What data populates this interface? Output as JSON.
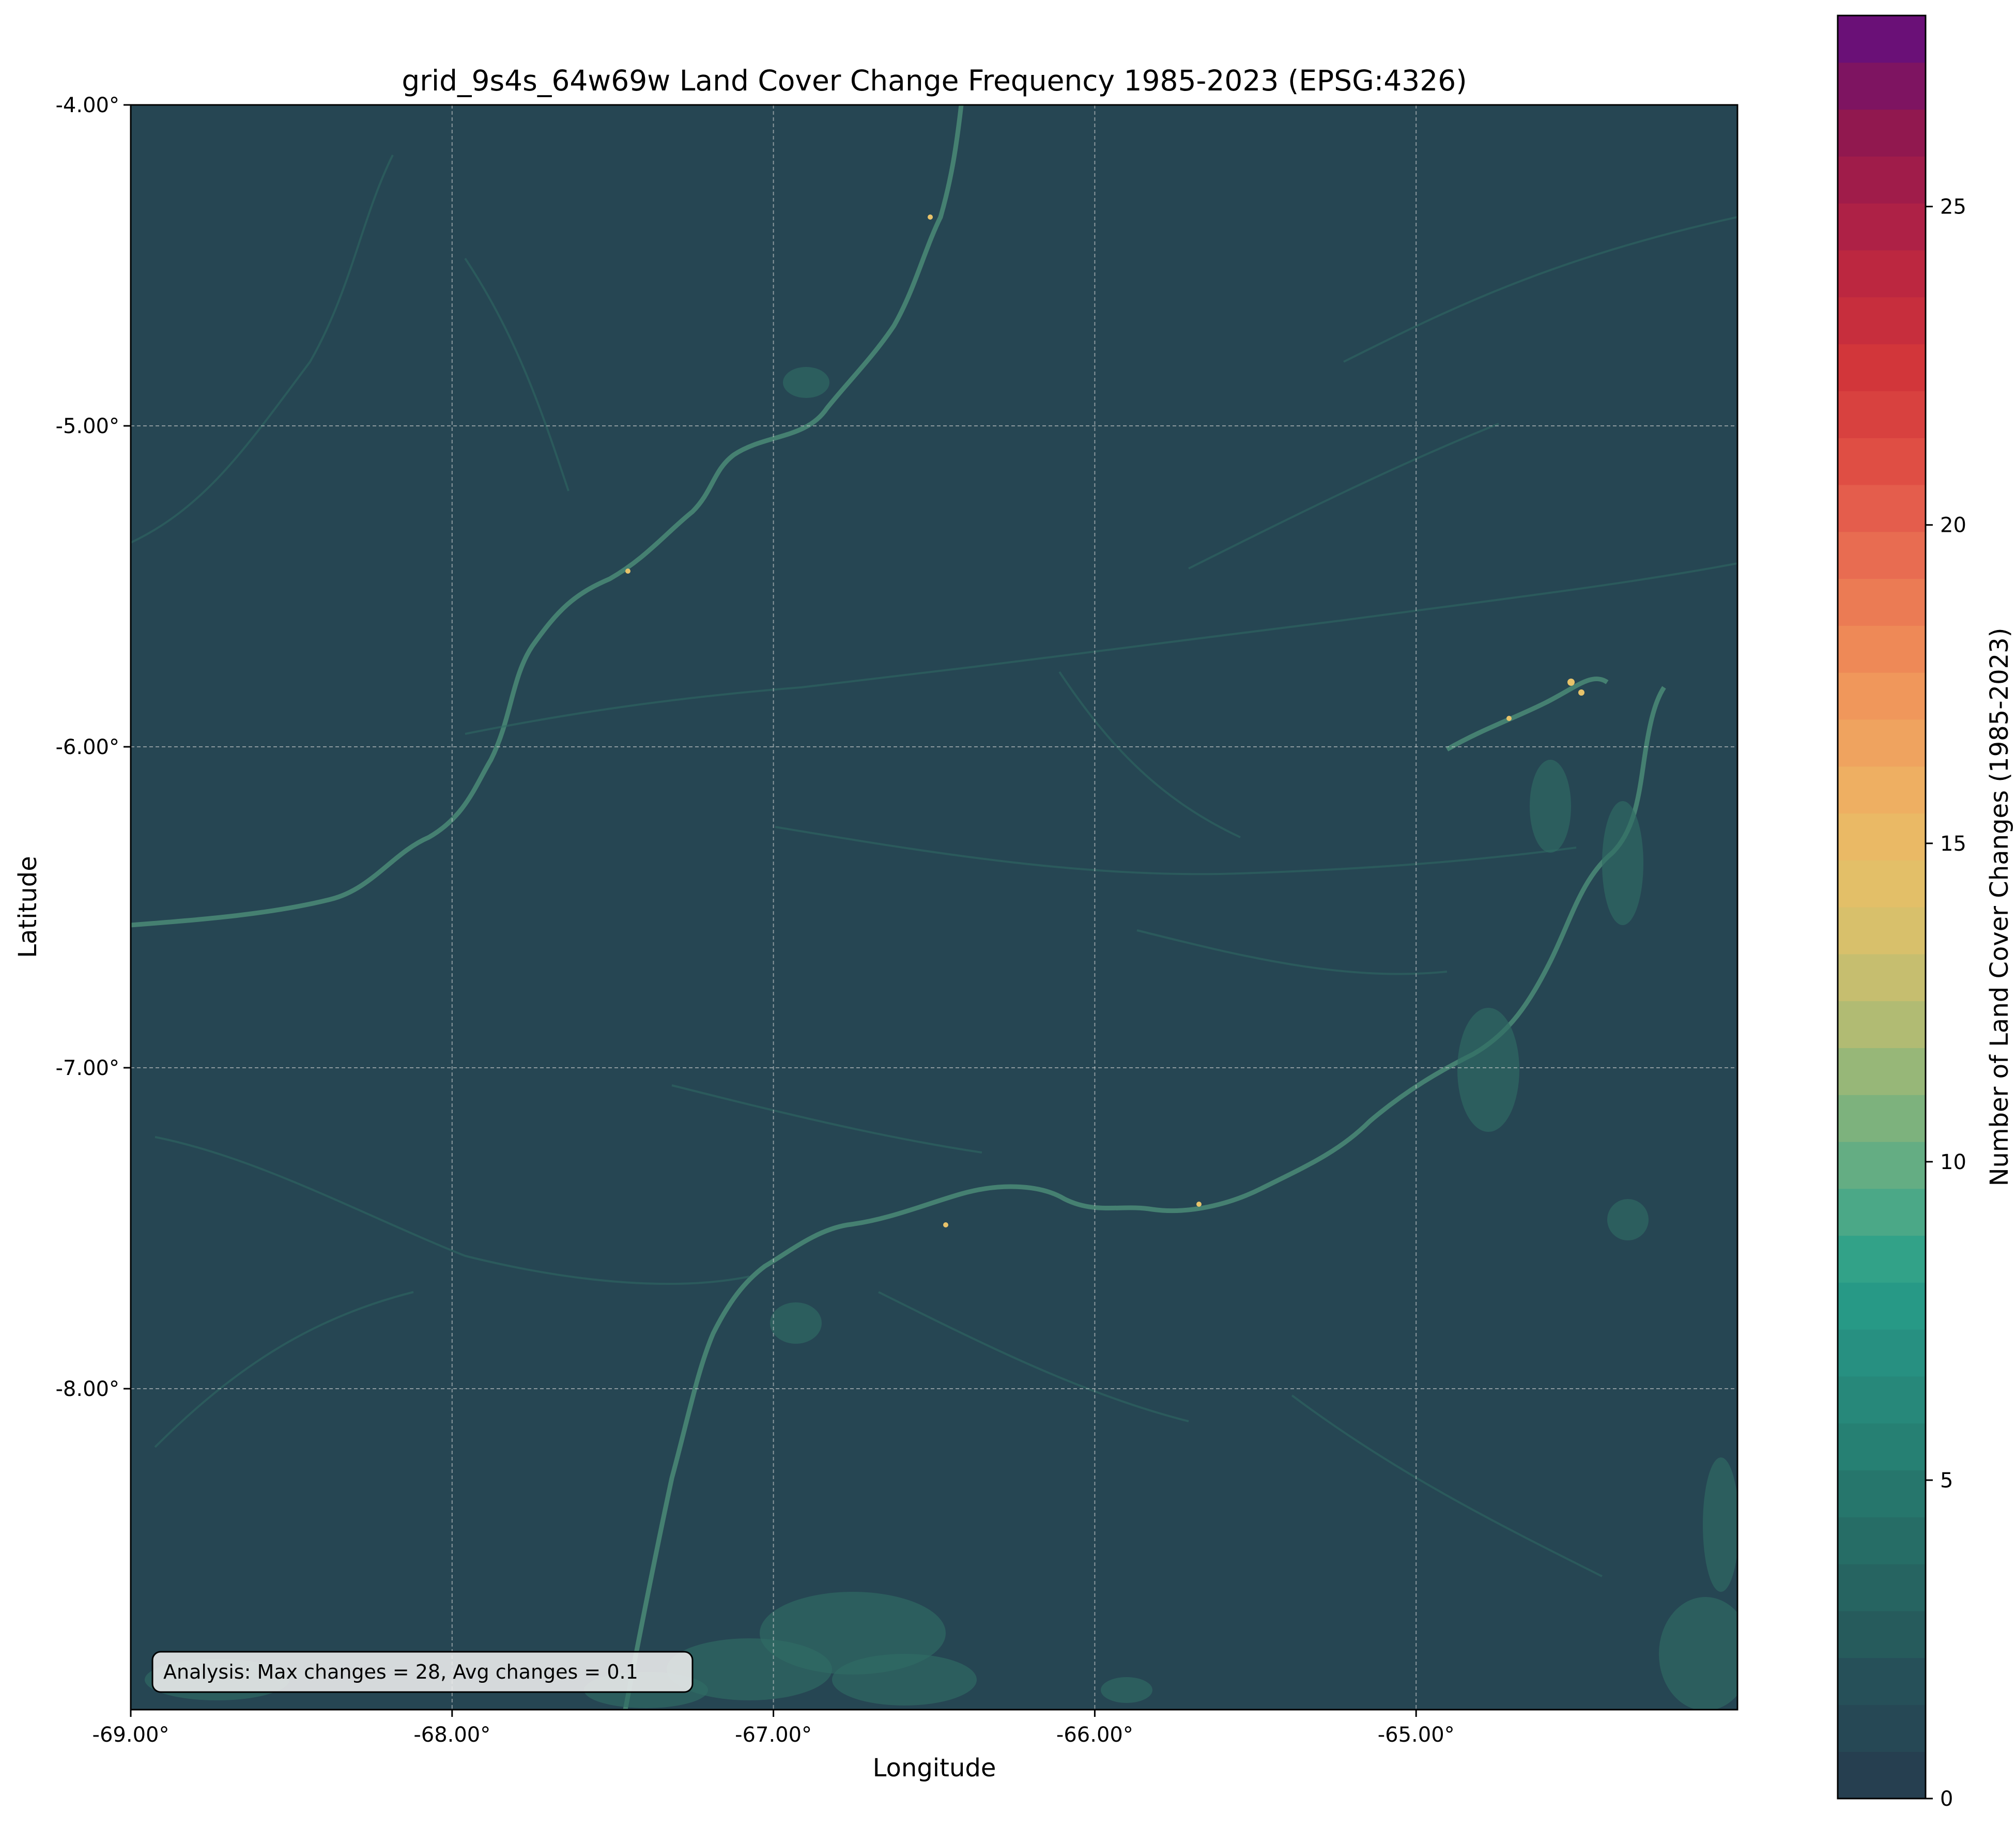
{
  "title": "grid_9s4s_64w69w Land Cover Change Frequency 1985-2023 (EPSG:4326)",
  "x_axis": {
    "label": "Longitude",
    "ticks": [
      "-69.00°",
      "-68.00°",
      "-67.00°",
      "-66.00°",
      "-65.00°"
    ],
    "tick_values": [
      -69,
      -68,
      -67,
      -66,
      -65
    ],
    "range": [
      -69,
      -64
    ]
  },
  "y_axis": {
    "label": "Latitude",
    "ticks": [
      "-4.00°",
      "-5.00°",
      "-6.00°",
      "-7.00°",
      "-8.00°"
    ],
    "tick_values": [
      -4,
      -5,
      -6,
      -7,
      -8
    ],
    "range": [
      -9,
      -4
    ]
  },
  "grid": true,
  "annotation": "Analysis: Max changes = 28, Avg changes = 0.1",
  "colorbar": {
    "label": "Number of Land Cover Changes (1985-2023)",
    "ticks": [
      "0",
      "5",
      "10",
      "15",
      "20",
      "25"
    ],
    "tick_values": [
      0,
      5,
      10,
      15,
      20,
      25
    ],
    "range": [
      0,
      28
    ],
    "bins": 38,
    "colors": [
      "#263f50",
      "#264e58",
      "#26605e",
      "#267068",
      "#268073",
      "#278e80",
      "#279f89",
      "#53aa86",
      "#7fb27d",
      "#aebb74",
      "#d3c06d",
      "#e8bf66",
      "#efae62",
      "#f0985b",
      "#ec8055",
      "#e76650",
      "#de4b43",
      "#d2363a",
      "#c0293f",
      "#a71e48",
      "#8e1750",
      "#6a1077"
    ]
  },
  "map": {
    "background_color": "#264653",
    "river_color": "#2f6b64",
    "highlight_color": "#5fb08a",
    "hot_color": "#e8c36a"
  }
}
